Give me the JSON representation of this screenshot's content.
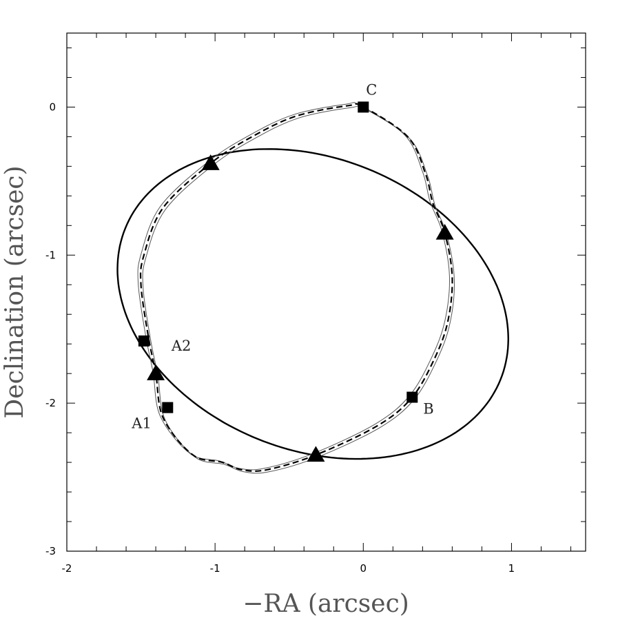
{
  "chart_data": {
    "type": "scatter",
    "xlabel": "−RA (arcsec)",
    "ylabel": "Declination (arcsec)",
    "xlim": [
      -2,
      1.5
    ],
    "ylim": [
      -3,
      0.5
    ],
    "x_ticks": [
      -2,
      -1,
      0,
      1
    ],
    "y_ticks": [
      0,
      -1,
      -2,
      -3
    ],
    "x_tick_labels": [
      "-2",
      "-1",
      "0",
      "1"
    ],
    "y_tick_labels": [
      "0",
      "-1",
      "-2",
      "-3"
    ],
    "grid": false,
    "legend": "none",
    "images": [
      {
        "label": "C",
        "x": 0.0,
        "y": 0.0
      },
      {
        "label": "A2",
        "x": -1.48,
        "y": -1.58
      },
      {
        "label": "A1",
        "x": -1.32,
        "y": -2.03
      },
      {
        "label": "B",
        "x": 0.33,
        "y": -1.96
      }
    ],
    "predicted_images": [
      {
        "x": -1.03,
        "y": -0.38
      },
      {
        "x": 0.55,
        "y": -0.85
      },
      {
        "x": -1.4,
        "y": -1.8
      },
      {
        "x": -0.32,
        "y": -2.35
      }
    ],
    "caustic_ellipse": {
      "center": [
        -0.34,
        -1.33
      ],
      "semi_axes": [
        1.365,
        0.985
      ],
      "angle_deg": -22
    },
    "critical_curve": {
      "x": [
        0.0,
        0.3,
        0.42,
        0.47,
        0.55,
        0.6,
        0.57,
        0.48,
        0.33,
        0.1,
        -0.32,
        -0.65,
        -0.82,
        -0.95,
        -1.15,
        -1.35,
        -1.4,
        -1.45,
        -1.5,
        -1.48,
        -1.35,
        -1.03,
        -0.75,
        -0.45,
        -0.1,
        0.0
      ],
      "y": [
        0.0,
        -0.2,
        -0.45,
        -0.65,
        -0.85,
        -1.15,
        -1.45,
        -1.7,
        -1.96,
        -2.15,
        -2.35,
        -2.45,
        -2.45,
        -2.4,
        -2.35,
        -2.1,
        -1.8,
        -1.55,
        -1.2,
        -1.0,
        -0.68,
        -0.38,
        -0.2,
        -0.06,
        0.01,
        0.0
      ]
    }
  }
}
